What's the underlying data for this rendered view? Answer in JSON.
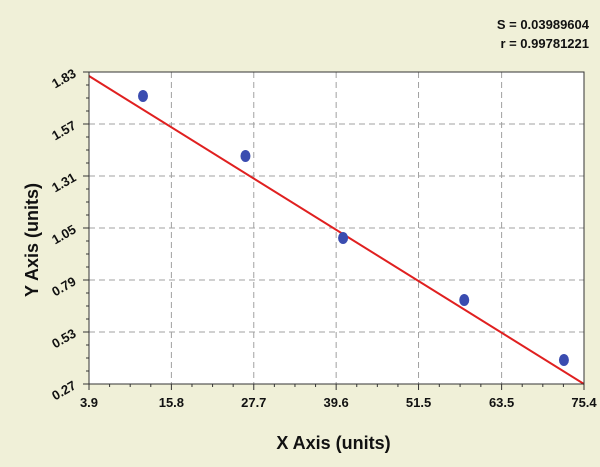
{
  "chart_data": {
    "type": "scatter",
    "title": "",
    "xlabel": "X Axis (units)",
    "ylabel": "Y Axis (units)",
    "xlim": [
      3.9,
      75.4
    ],
    "ylim": [
      0.27,
      1.83
    ],
    "x_ticks": [
      "3.9",
      "15.8",
      "27.7",
      "39.6",
      "51.5",
      "63.5",
      "75.4"
    ],
    "y_ticks": [
      "1.83",
      "1.57",
      "1.31",
      "1.05",
      "0.79",
      "0.53",
      "0.27"
    ],
    "grid": true,
    "stats": [
      "S = 0.03989604",
      "r = 0.99781221"
    ],
    "series": [
      {
        "type": "scatter",
        "x": [
          11.7,
          26.5,
          40.6,
          58.1,
          72.5
        ],
        "y": [
          1.71,
          1.41,
          1.0,
          0.69,
          0.39
        ],
        "color": "#3a4cb0"
      },
      {
        "type": "line",
        "x": [
          3.9,
          75.4
        ],
        "y": [
          1.81,
          0.27
        ],
        "color": "#e02020"
      }
    ],
    "colors": {
      "background": "#f0f0d8",
      "plot_area": "#ffffff",
      "grid": "#a0a0a0",
      "point": "#3a4cb0",
      "fit_line": "#e02020"
    }
  }
}
